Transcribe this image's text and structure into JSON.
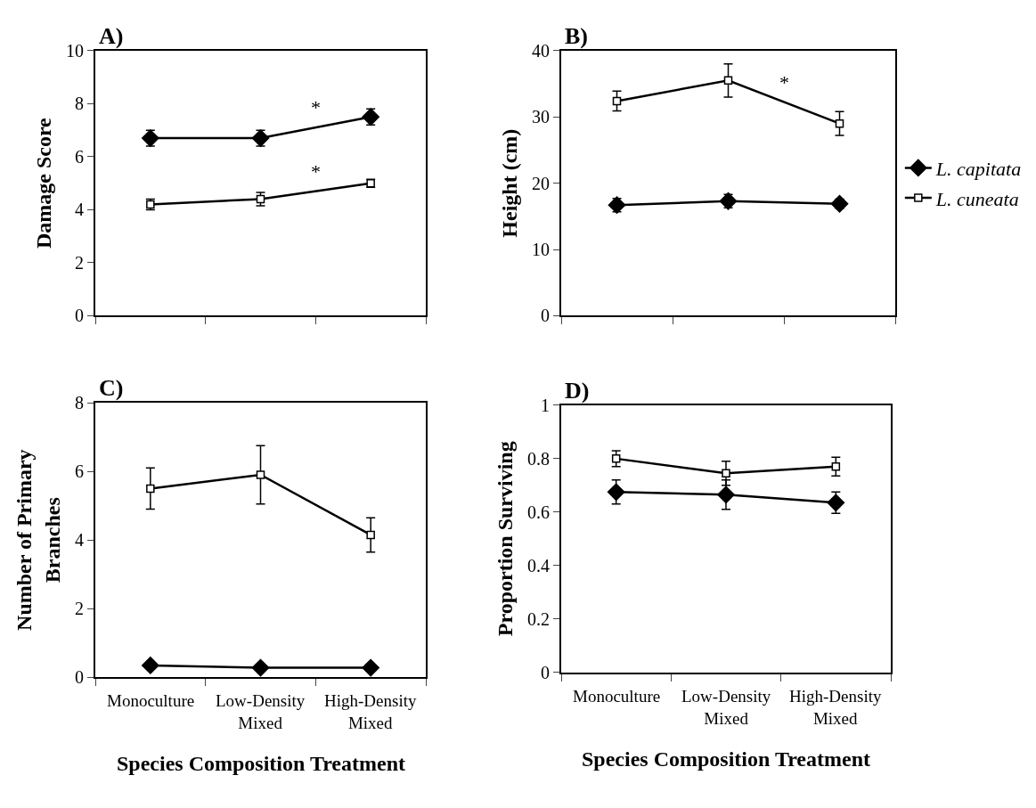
{
  "chart_data": [
    {
      "type": "line",
      "title": "A)",
      "ylabel": "Damage Score",
      "categories": [
        "Monoculture",
        "Low-Density Mixed",
        "High-Density Mixed"
      ],
      "ylim": [
        0,
        10
      ],
      "yticks": [
        0,
        2,
        4,
        6,
        8,
        10
      ],
      "tick_labels": "y",
      "legend": "right",
      "annotations": [
        "*",
        "*"
      ],
      "series": [
        {
          "name": "L. capitata",
          "color": "#000000",
          "marker": "diamond",
          "values": [
            6.7,
            6.7,
            7.5
          ],
          "errors": [
            0.3,
            0.3,
            0.3
          ]
        },
        {
          "name": "L. cuneata",
          "color": "#000000",
          "marker": "square",
          "values": [
            4.2,
            4.4,
            5.0
          ],
          "errors": [
            0.2,
            0.25,
            0.15
          ]
        }
      ]
    },
    {
      "type": "line",
      "title": "B)",
      "ylabel": "Height (cm)",
      "categories": [
        "Monoculture",
        "Low-Density Mixed",
        "High-Density Mixed"
      ],
      "ylim": [
        0,
        40
      ],
      "yticks": [
        0,
        10,
        20,
        30,
        40
      ],
      "tick_labels": "y",
      "legend": "right",
      "annotations": [
        "*"
      ],
      "series": [
        {
          "name": "L. capitata",
          "color": "#000000",
          "marker": "diamond",
          "values": [
            16.7,
            17.3,
            16.9
          ],
          "errors": [
            1.0,
            1.0,
            0.7
          ]
        },
        {
          "name": "L. cuneata",
          "color": "#000000",
          "marker": "square",
          "values": [
            32.4,
            35.5,
            29.0
          ],
          "errors": [
            1.5,
            2.5,
            1.8
          ]
        }
      ]
    },
    {
      "type": "line",
      "title": "C)",
      "ylabel": "Number of Primary Branches",
      "xlabel": "Species Composition Treatment",
      "categories": [
        "Monoculture",
        "Low-Density Mixed",
        "High-Density Mixed"
      ],
      "ylim": [
        0,
        8
      ],
      "yticks": [
        0,
        2,
        4,
        6,
        8
      ],
      "legend": "right",
      "series": [
        {
          "name": "L. capitata",
          "color": "#000000",
          "marker": "diamond",
          "values": [
            0.35,
            0.28,
            0.28
          ]
        },
        {
          "name": "L. cuneata",
          "color": "#000000",
          "marker": "square",
          "values": [
            5.5,
            5.9,
            4.15
          ],
          "errors": [
            0.6,
            0.85,
            0.5
          ]
        }
      ]
    },
    {
      "type": "line",
      "title": "D)",
      "ylabel": "Proportion Surviving",
      "xlabel": "Species Composition Treatment",
      "categories": [
        "Monoculture",
        "Low-Density Mixed",
        "High-Density Mixed"
      ],
      "ylim": [
        0,
        1
      ],
      "yticks": [
        0,
        0.2,
        0.4,
        0.6,
        0.8,
        1
      ],
      "legend": "right",
      "series": [
        {
          "name": "L. capitata",
          "color": "#000000",
          "marker": "diamond",
          "values": [
            0.675,
            0.665,
            0.635
          ],
          "errors": [
            0.045,
            0.055,
            0.04
          ]
        },
        {
          "name": "L. cuneata",
          "color": "#000000",
          "marker": "square",
          "values": [
            0.8,
            0.745,
            0.77
          ],
          "errors": [
            0.03,
            0.045,
            0.035
          ]
        }
      ]
    }
  ]
}
